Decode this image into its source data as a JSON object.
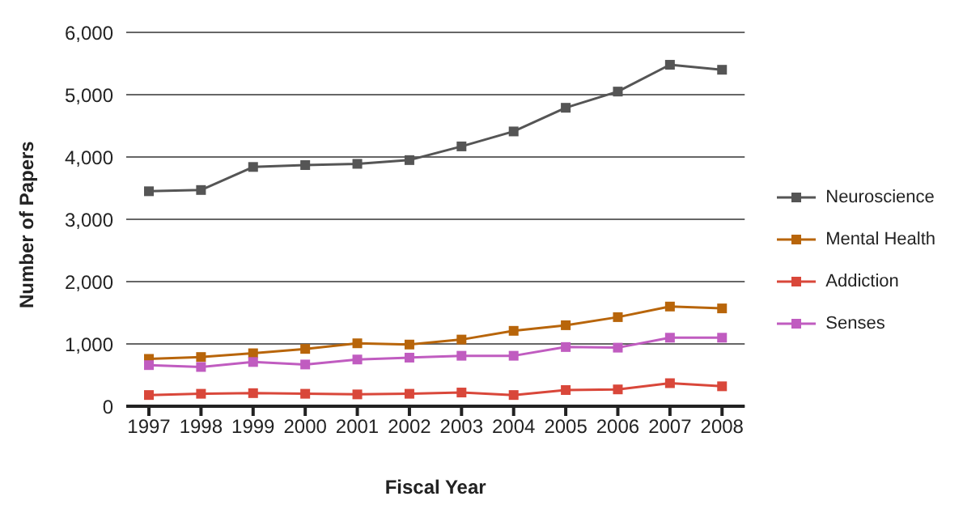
{
  "chart_data": {
    "type": "line",
    "xlabel": "Fiscal Year",
    "ylabel": "Number of Papers",
    "categories": [
      "1997",
      "1998",
      "1999",
      "2000",
      "2001",
      "2002",
      "2003",
      "2004",
      "2005",
      "2006",
      "2007",
      "2008"
    ],
    "series": [
      {
        "name": "Neuroscience",
        "color": "#555555",
        "values": [
          3450,
          3470,
          3840,
          3870,
          3890,
          3950,
          4170,
          4410,
          4790,
          5050,
          5480,
          5400
        ]
      },
      {
        "name": "Mental Health",
        "color": "#b8650a",
        "values": [
          760,
          790,
          850,
          920,
          1010,
          990,
          1070,
          1210,
          1300,
          1430,
          1600,
          1570
        ]
      },
      {
        "name": "Addiction",
        "color": "#d9473a",
        "values": [
          180,
          200,
          210,
          200,
          190,
          200,
          220,
          180,
          260,
          270,
          370,
          320
        ]
      },
      {
        "name": "Senses",
        "color": "#c05cc0",
        "values": [
          660,
          630,
          710,
          670,
          750,
          780,
          810,
          810,
          950,
          940,
          1100,
          1100
        ]
      }
    ],
    "ylim": [
      0,
      6000
    ],
    "yticks": [
      0,
      {
        "value": 1000,
        "label": "1,000"
      },
      {
        "value": 2000,
        "label": "2,000"
      },
      {
        "value": 3000,
        "label": "3,000"
      },
      {
        "value": 4000,
        "label": "4,000"
      },
      {
        "value": 5000,
        "label": "5,000"
      },
      {
        "value": 6000,
        "label": "6,000"
      }
    ],
    "grid": "y",
    "legend": "right",
    "marker": "square",
    "line_style": "solid"
  }
}
